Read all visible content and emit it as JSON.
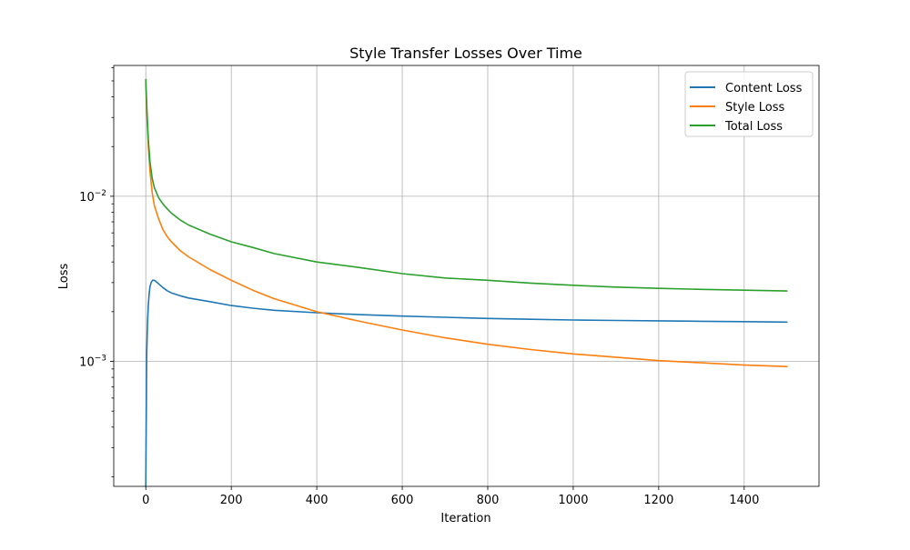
{
  "chart_data": {
    "type": "line",
    "title": "Style Transfer Losses Over Time",
    "xlabel": "Iteration",
    "ylabel": "Loss",
    "yscale": "log",
    "xlim": [
      -75,
      1575
    ],
    "ylim": [
      0.000175,
      0.062
    ],
    "x_ticks": [
      0,
      200,
      400,
      600,
      800,
      1000,
      1200,
      1400
    ],
    "x_tick_labels": [
      "0",
      "200",
      "400",
      "600",
      "800",
      "1000",
      "1200",
      "1400"
    ],
    "y_major_ticks": [
      0.001,
      0.01
    ],
    "y_major_labels": [
      {
        "base": "10",
        "exp": "−3"
      },
      {
        "base": "10",
        "exp": "−2"
      }
    ],
    "y_minor_ticks": [
      0.0002,
      0.0003,
      0.0004,
      0.0005,
      0.0006,
      0.0007,
      0.0008,
      0.0009,
      0.002,
      0.003,
      0.004,
      0.005,
      0.006,
      0.007,
      0.008,
      0.009,
      0.02,
      0.03,
      0.04,
      0.05,
      0.06
    ],
    "grid": true,
    "legend_position": "top-right",
    "series": [
      {
        "name": "Content Loss",
        "color": "#1f77b4",
        "x": [
          0,
          2,
          4,
          6,
          8,
          10,
          13,
          16,
          20,
          25,
          30,
          40,
          50,
          60,
          80,
          100,
          150,
          200,
          250,
          300,
          400,
          500,
          600,
          700,
          800,
          900,
          1000,
          1100,
          1200,
          1300,
          1400,
          1500
        ],
        "y": [
          0.000175,
          0.0011,
          0.0017,
          0.0022,
          0.0026,
          0.00285,
          0.00302,
          0.0031,
          0.0031,
          0.00303,
          0.00295,
          0.0028,
          0.00268,
          0.0026,
          0.0025,
          0.00242,
          0.0023,
          0.00218,
          0.0021,
          0.00204,
          0.00197,
          0.00192,
          0.00188,
          0.00185,
          0.00182,
          0.0018,
          0.00178,
          0.00177,
          0.00176,
          0.00175,
          0.00174,
          0.00173
        ]
      },
      {
        "name": "Style Loss",
        "color": "#ff7f0e",
        "x": [
          0,
          3,
          6,
          10,
          15,
          20,
          30,
          40,
          50,
          60,
          80,
          100,
          150,
          200,
          250,
          300,
          400,
          500,
          600,
          700,
          800,
          900,
          1000,
          1100,
          1200,
          1300,
          1400,
          1500
        ],
        "y": [
          0.048,
          0.03,
          0.02,
          0.014,
          0.0105,
          0.0088,
          0.0073,
          0.0063,
          0.0057,
          0.0053,
          0.0047,
          0.0043,
          0.0036,
          0.0031,
          0.0027,
          0.0024,
          0.002,
          0.00175,
          0.00155,
          0.00139,
          0.00127,
          0.00118,
          0.00111,
          0.00106,
          0.00101,
          0.00098,
          0.00095,
          0.00093
        ]
      },
      {
        "name": "Total Loss",
        "color": "#2ca02c",
        "x": [
          0,
          3,
          6,
          10,
          15,
          20,
          30,
          40,
          50,
          60,
          80,
          100,
          150,
          200,
          250,
          300,
          400,
          500,
          600,
          700,
          800,
          900,
          1000,
          1100,
          1200,
          1300,
          1400,
          1500
        ],
        "y": [
          0.051,
          0.032,
          0.022,
          0.016,
          0.0128,
          0.0113,
          0.0098,
          0.009,
          0.0084,
          0.0079,
          0.0072,
          0.0067,
          0.0059,
          0.0053,
          0.0049,
          0.0045,
          0.004,
          0.0037,
          0.0034,
          0.0032,
          0.0031,
          0.00298,
          0.00289,
          0.00282,
          0.00277,
          0.00273,
          0.0027,
          0.00267
        ]
      }
    ]
  }
}
